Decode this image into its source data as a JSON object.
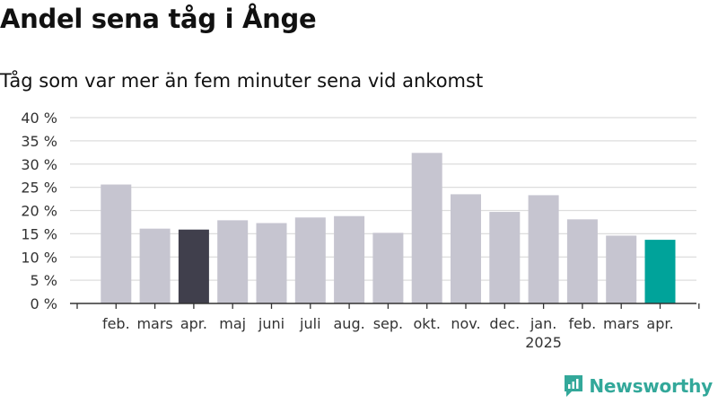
{
  "header": {
    "title": "Andel sena tåg i Ånge",
    "subtitle": "Tåg som var mer än fem minuter sena vid ankomst"
  },
  "logo": {
    "text": "Newsworthy",
    "icon": "newsworthy-logo-icon",
    "color": "#33a89a"
  },
  "colors": {
    "bar_default": "#c6c5d0",
    "bar_last_year": "#403f4c",
    "bar_current": "#00a39a",
    "grid": "#dddddd",
    "axis": "#333333"
  },
  "chart_data": {
    "type": "bar",
    "title": "Andel sena tåg i Ånge",
    "subtitle": "Tåg som var mer än fem minuter sena vid ankomst",
    "xlabel": "",
    "ylabel": "",
    "categories": [
      "feb.",
      "mars",
      "apr.",
      "maj",
      "juni",
      "juli",
      "aug.",
      "sep.",
      "okt.",
      "nov.",
      "dec.",
      "jan.",
      "feb.",
      "mars",
      "apr."
    ],
    "year_labels": [
      {
        "index": 11,
        "label": "2025"
      }
    ],
    "values": [
      25.6,
      16.1,
      15.9,
      17.9,
      17.3,
      18.5,
      18.8,
      15.2,
      32.4,
      23.5,
      19.7,
      23.3,
      18.1,
      14.6,
      13.7
    ],
    "highlight": {
      "2": "bar_last_year",
      "14": "bar_current"
    },
    "ylim": [
      0,
      40
    ],
    "yticks": [
      0,
      5,
      10,
      15,
      20,
      25,
      30,
      35,
      40
    ],
    "ytick_labels": [
      "0 %",
      "5 %",
      "10 %",
      "15 %",
      "20 %",
      "25 %",
      "30 %",
      "35 %",
      "40 %"
    ],
    "grid": true,
    "legend": "none"
  }
}
